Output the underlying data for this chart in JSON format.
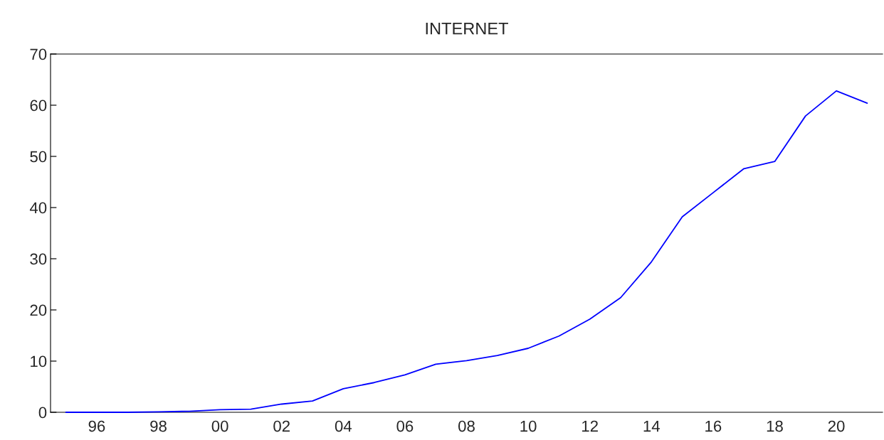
{
  "chart_data": {
    "type": "line",
    "title": "INTERNET",
    "categories": [
      null,
      "96",
      null,
      "98",
      null,
      "00",
      null,
      "02",
      null,
      "04",
      null,
      "06",
      null,
      "08",
      null,
      "10",
      null,
      "12",
      null,
      "14",
      null,
      "16",
      null,
      "18",
      null,
      "20",
      null
    ],
    "series": [
      {
        "color": "#0000ff",
        "values": [
          0,
          0,
          0,
          0.1,
          0.2,
          0.5,
          0.6,
          1.6,
          2.2,
          4.6,
          5.8,
          7.3,
          9.4,
          10.1,
          11.1,
          12.5,
          14.9,
          18.2,
          22.4,
          29.4,
          38.2,
          42.9,
          47.6,
          49.0,
          57.9,
          62.8,
          60.4
        ]
      }
    ],
    "ylim": [
      0,
      70
    ],
    "yticks": [
      0,
      10,
      20,
      30,
      40,
      50,
      60,
      70
    ],
    "grid": false,
    "marker": "none",
    "line_style": "solid"
  }
}
